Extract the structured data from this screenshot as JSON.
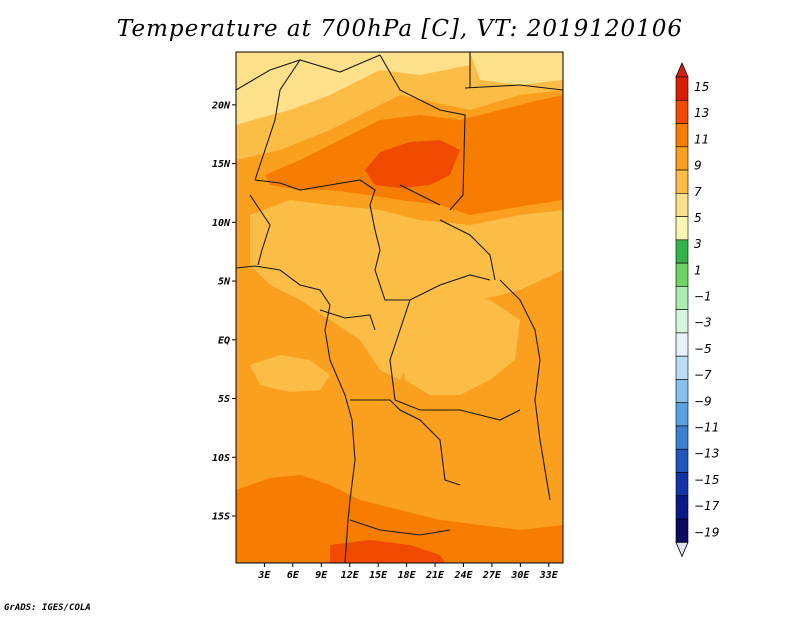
{
  "title": "Temperature at 700hPa [C], VT: 2019120106",
  "credit": "GrADS: IGES/COLA",
  "map": {
    "lon_range": [
      0,
      34.5
    ],
    "lat_range": [
      -19,
      24.5
    ],
    "lat_ticks": [
      {
        "value": 20,
        "label": "20N"
      },
      {
        "value": 15,
        "label": "15N"
      },
      {
        "value": 10,
        "label": "10N"
      },
      {
        "value": 5,
        "label": "5N"
      },
      {
        "value": 0,
        "label": "EQ"
      },
      {
        "value": -5,
        "label": "5S"
      },
      {
        "value": -10,
        "label": "10S"
      },
      {
        "value": -15,
        "label": "15S"
      }
    ],
    "lon_ticks": [
      {
        "value": 3,
        "label": "3E"
      },
      {
        "value": 6,
        "label": "6E"
      },
      {
        "value": 9,
        "label": "9E"
      },
      {
        "value": 12,
        "label": "12E"
      },
      {
        "value": 15,
        "label": "15E"
      },
      {
        "value": 18,
        "label": "18E"
      },
      {
        "value": 21,
        "label": "21E"
      },
      {
        "value": 24,
        "label": "24E"
      },
      {
        "value": 27,
        "label": "27E"
      },
      {
        "value": 30,
        "label": "30E"
      },
      {
        "value": 33,
        "label": "33E"
      }
    ]
  },
  "colorbar": {
    "labels": [
      "15",
      "13",
      "11",
      "9",
      "7",
      "5",
      "3",
      "1",
      "−1",
      "−3",
      "−5",
      "−7",
      "−9",
      "−11",
      "−13",
      "−15",
      "−17",
      "−19"
    ],
    "colors": [
      "#dc1e00",
      "#f04a00",
      "#f67d00",
      "#fa9f1e",
      "#fcbd46",
      "#fde08a",
      "#fbf5b4",
      "#34b34a",
      "#6cd463",
      "#a9ecad",
      "#d6f5dc",
      "#e6f2fb",
      "#b9dcf4",
      "#86c1ec",
      "#5aa0e2",
      "#3d7fd3",
      "#2156bd",
      "#1333a8",
      "#0b1a88",
      "#0a0a60"
    ],
    "top_color": "#d8200e",
    "bottom_color": "#dde2f5"
  },
  "colors": {
    "t_5_7": "#fde08a",
    "t_7_9": "#fcbd46",
    "t_9_11": "#fa9f1e",
    "t_11_13": "#f67d00",
    "t_13_15": "#f04a00"
  }
}
